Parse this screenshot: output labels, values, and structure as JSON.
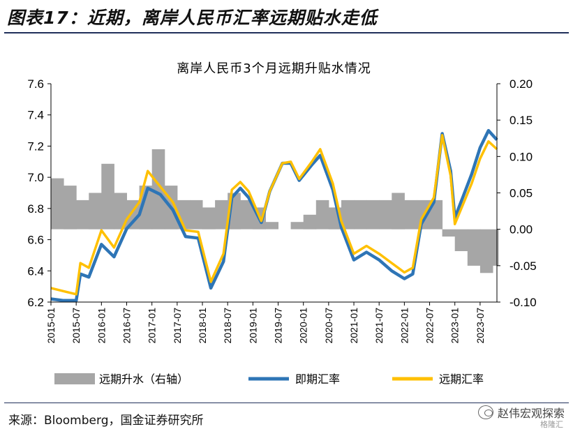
{
  "figure_title": "图表17：近期，离岸人民币汇率远期贴水走低",
  "source": "来源：Bloomberg，国金证券研究所",
  "watermark": {
    "text": "赵伟宏观探索",
    "sub": "格隆汇"
  },
  "chart_data": {
    "type": "line",
    "title": "离岸人民币3个月远期升贴水情况",
    "left_axis": {
      "ylim": [
        6.2,
        7.6
      ],
      "ticks": [
        "6.2",
        "6.4",
        "6.6",
        "6.8",
        "7.0",
        "7.2",
        "7.4",
        "7.6"
      ]
    },
    "right_axis": {
      "ylim": [
        -0.1,
        0.2
      ],
      "ticks": [
        "-0.10",
        "-0.05",
        "0.00",
        "0.05",
        "0.10",
        "0.15",
        "0.20"
      ]
    },
    "x_ticks": [
      "2015-01",
      "2015-07",
      "2016-01",
      "2016-07",
      "2017-01",
      "2017-07",
      "2018-01",
      "2018-07",
      "2019-01",
      "2019-07",
      "2020-01",
      "2020-07",
      "2021-01",
      "2021-07",
      "2022-01",
      "2022-07",
      "2023-01",
      "2023-07"
    ],
    "x_range": [
      "2015-01",
      "2023-11"
    ],
    "grid": false,
    "legend_position": "bottom",
    "colors": {
      "area": "#a6a6a6",
      "spot": "#2e75b6",
      "forward": "#ffc000"
    },
    "series": [
      {
        "name": "远期升水（右轴）",
        "axis": "right",
        "kind": "area",
        "x": [
          "2015-01",
          "2015-04",
          "2015-07",
          "2015-10",
          "2016-01",
          "2016-04",
          "2016-07",
          "2016-10",
          "2017-01",
          "2017-04",
          "2017-07",
          "2017-10",
          "2018-01",
          "2018-04",
          "2018-07",
          "2018-10",
          "2019-01",
          "2019-04",
          "2019-07",
          "2019-10",
          "2020-01",
          "2020-04",
          "2020-07",
          "2020-10",
          "2021-01",
          "2021-04",
          "2021-07",
          "2021-10",
          "2022-01",
          "2022-04",
          "2022-07",
          "2022-10",
          "2023-01",
          "2023-04",
          "2023-07",
          "2023-10",
          "2023-11"
        ],
        "values": [
          0.07,
          0.06,
          0.04,
          0.05,
          0.09,
          0.05,
          0.04,
          0.06,
          0.11,
          0.06,
          0.04,
          0.04,
          0.03,
          0.04,
          0.05,
          0.04,
          0.03,
          0.01,
          0.0,
          0.01,
          0.02,
          0.04,
          0.03,
          0.04,
          0.04,
          0.04,
          0.04,
          0.05,
          0.04,
          0.04,
          0.04,
          -0.01,
          -0.03,
          -0.05,
          -0.06,
          -0.05,
          -0.05
        ]
      },
      {
        "name": "即期汇率",
        "axis": "left",
        "kind": "line",
        "x": [
          "2015-01",
          "2015-04",
          "2015-07",
          "2015-08",
          "2015-10",
          "2016-01",
          "2016-04",
          "2016-07",
          "2016-10",
          "2016-12",
          "2017-03",
          "2017-06",
          "2017-09",
          "2017-12",
          "2018-03",
          "2018-06",
          "2018-08",
          "2018-10",
          "2018-12",
          "2019-03",
          "2019-05",
          "2019-08",
          "2019-10",
          "2019-12",
          "2020-03",
          "2020-05",
          "2020-08",
          "2020-10",
          "2021-01",
          "2021-04",
          "2021-07",
          "2021-10",
          "2022-01",
          "2022-03",
          "2022-05",
          "2022-08",
          "2022-10",
          "2022-12",
          "2023-01",
          "2023-03",
          "2023-05",
          "2023-07",
          "2023-09",
          "2023-11"
        ],
        "values": [
          6.22,
          6.21,
          6.21,
          6.38,
          6.36,
          6.57,
          6.49,
          6.67,
          6.76,
          6.93,
          6.89,
          6.79,
          6.62,
          6.61,
          6.29,
          6.46,
          6.87,
          6.93,
          6.87,
          6.71,
          6.91,
          7.09,
          7.09,
          6.98,
          7.08,
          7.14,
          6.92,
          6.68,
          6.47,
          6.52,
          6.47,
          6.4,
          6.35,
          6.38,
          6.7,
          6.84,
          7.28,
          7.04,
          6.74,
          6.88,
          7.02,
          7.19,
          7.3,
          7.24
        ]
      },
      {
        "name": "远期汇率",
        "axis": "left",
        "kind": "line",
        "x": [
          "2015-01",
          "2015-04",
          "2015-07",
          "2015-08",
          "2015-10",
          "2016-01",
          "2016-04",
          "2016-07",
          "2016-10",
          "2016-12",
          "2017-03",
          "2017-06",
          "2017-09",
          "2017-12",
          "2018-03",
          "2018-06",
          "2018-08",
          "2018-10",
          "2018-12",
          "2019-03",
          "2019-05",
          "2019-08",
          "2019-10",
          "2019-12",
          "2020-03",
          "2020-05",
          "2020-08",
          "2020-10",
          "2021-01",
          "2021-04",
          "2021-07",
          "2021-10",
          "2022-01",
          "2022-03",
          "2022-05",
          "2022-08",
          "2022-10",
          "2022-12",
          "2023-01",
          "2023-03",
          "2023-05",
          "2023-07",
          "2023-09",
          "2023-11"
        ],
        "values": [
          6.29,
          6.27,
          6.25,
          6.45,
          6.42,
          6.66,
          6.55,
          6.73,
          6.84,
          7.04,
          6.94,
          6.84,
          6.66,
          6.65,
          6.33,
          6.51,
          6.92,
          6.97,
          6.91,
          6.72,
          6.91,
          7.09,
          7.1,
          6.99,
          7.1,
          7.18,
          6.96,
          6.72,
          6.51,
          6.56,
          6.51,
          6.45,
          6.39,
          6.42,
          6.73,
          6.87,
          7.27,
          7.01,
          6.7,
          6.83,
          6.96,
          7.12,
          7.23,
          7.18
        ]
      }
    ]
  }
}
